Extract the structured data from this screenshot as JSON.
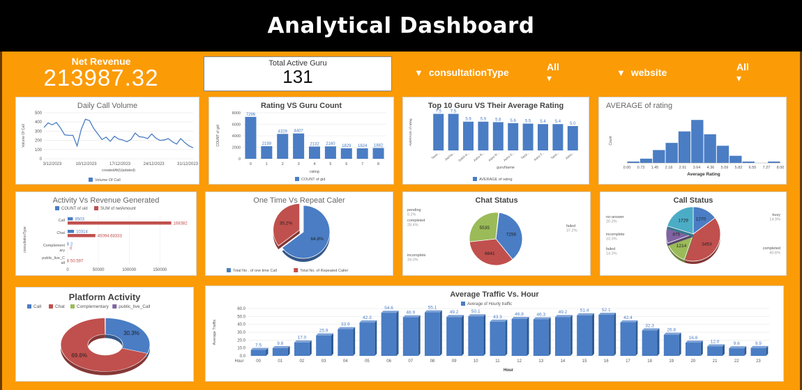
{
  "header": {
    "title": "Analytical Dashboard"
  },
  "kpi": {
    "net_revenue_label": "Net Revenue",
    "net_revenue_value": "213987.32",
    "active_guru_label": "Total Active Guru",
    "active_guru_value": "131"
  },
  "filters": [
    {
      "label": "consultationType",
      "value": "All"
    },
    {
      "label": "website",
      "value": "All"
    }
  ],
  "chart_data": [
    {
      "id": "daily-call-volume",
      "type": "line",
      "title": "Daily Call Volume",
      "xlabel": "createdAt(Updated)",
      "ylabel": "Volume Of Call",
      "ylim": [
        0,
        500
      ],
      "yticks": [
        "0",
        "100",
        "200",
        "300",
        "400",
        "500"
      ],
      "xticks": [
        "3/12/2023",
        "10/12/2023",
        "17/12/2023",
        "24/12/2023",
        "31/12/2023"
      ],
      "values": [
        340,
        390,
        370,
        395,
        335,
        260,
        255,
        255,
        140,
        320,
        430,
        415,
        330,
        270,
        210,
        235,
        190,
        245,
        215,
        205,
        185,
        210,
        280,
        240,
        235,
        220,
        270,
        225,
        200,
        205,
        220,
        185,
        160,
        220,
        175,
        140,
        120
      ],
      "legend": [
        {
          "name": "Volume Of Call",
          "color": "#4a7dc4"
        }
      ]
    },
    {
      "id": "rating-vs-guru-count",
      "type": "bar",
      "title": "Rating VS Guru Count",
      "xlabel": "rating",
      "ylabel": "COUNT of gid",
      "ylim": [
        0,
        8000
      ],
      "yticks": [
        "0",
        "2000",
        "4000",
        "6000",
        "8000"
      ],
      "categories": [
        "0",
        "1",
        "2",
        "3",
        "4",
        "5",
        "6",
        "7",
        "8"
      ],
      "values": [
        7296,
        2199,
        4329,
        4407,
        2132,
        2160,
        1829,
        1824,
        1882
      ],
      "labels": [
        "7296",
        "2199",
        "4329",
        "4407",
        "2132",
        "2160",
        "1829",
        "1824",
        "1882"
      ],
      "legend": [
        {
          "name": "COUNT of gid",
          "color": "#4a7dc4"
        }
      ]
    },
    {
      "id": "top10-guru",
      "type": "bar",
      "title": "Top 10 Guru VS Their Average Rating",
      "xlabel": "guruName",
      "ylabel": "AVERAGE of rating",
      "ylim": [
        0,
        8
      ],
      "categories": [
        "Tarot...",
        "Aacha...",
        "Sukhi K...",
        "Astro R...",
        "Astro R...",
        "Astro S...",
        "Tarot...",
        "Astro T...",
        "Tarot...",
        "Astro..."
      ],
      "values": [
        7.5,
        7.5,
        5.9,
        5.9,
        5.8,
        5.6,
        5.5,
        5.4,
        5.4,
        5.0
      ],
      "labels": [
        "7.5",
        "7.5",
        "5.9",
        "5.9",
        "5.8",
        "5.6",
        "5.5",
        "5.4",
        "5.4",
        "5.0"
      ],
      "legend": [
        {
          "name": "AVERAGE of rating",
          "color": "#4a7dc4"
        }
      ]
    },
    {
      "id": "average-of-rating",
      "type": "bar",
      "title": "AVERAGE of rating",
      "xlabel": "Average Rating",
      "ylabel": "Count",
      "xticks": [
        "0.00",
        "0.73",
        "1.45",
        "2.18",
        "2.91",
        "3.64",
        "4.36",
        "5.09",
        "5.82",
        "6.55",
        "7.27",
        "8.00"
      ],
      "values": [
        1,
        3,
        9,
        14,
        22,
        30,
        20,
        12,
        5,
        1,
        0,
        1
      ],
      "ylim": [
        0,
        34
      ]
    },
    {
      "id": "activity-vs-revenue",
      "type": "bar",
      "title": "Activity Vs Revenue Generated",
      "ylabel": "consultationType",
      "categories": [
        "Call",
        "Chat",
        "Complement ary",
        "public_live_C all"
      ],
      "series": [
        {
          "name": "COUNT of uid",
          "color": "#4a7dc4",
          "values": [
            8503,
            10314,
            2,
            0
          ],
          "labels": [
            "8503",
            "10314",
            "2",
            ""
          ]
        },
        {
          "name": "SUM of netAmount",
          "color": "#c0504d",
          "values": [
            168382,
            45094.68333,
            0,
            50.597
          ],
          "labels": [
            "168382",
            "45094.68333",
            "0",
            "50.597"
          ]
        }
      ],
      "xticks": [
        "0",
        "50000",
        "100000",
        "150000"
      ],
      "xlim": [
        0,
        170000
      ]
    },
    {
      "id": "one-time-vs-repeat",
      "type": "pie",
      "title": "One Time Vs Repeat Caler",
      "slices": [
        {
          "name": "Total No . of one time Call",
          "value": 64.8,
          "label": "64.8%",
          "color": "#4a7dc4"
        },
        {
          "name": "Total No. of Repeated Caller",
          "value": 35.2,
          "label": "35.2%",
          "color": "#c0504d"
        }
      ]
    },
    {
      "id": "chat-status",
      "type": "pie",
      "title": "Chat Status",
      "slices": [
        {
          "name": "failed",
          "value": 7256,
          "label": "7256",
          "pct": "37.2%",
          "color": "#4a7dc4"
        },
        {
          "name": "incomplete",
          "value": 6641,
          "label": "6641",
          "pct": "34.0%",
          "color": "#c0504d"
        },
        {
          "name": "completed",
          "value": 5535,
          "label": "5535",
          "pct": "28.4%",
          "color": "#9bbb59"
        },
        {
          "name": "pending",
          "value": 60,
          "label": "",
          "pct": "0.2%",
          "color": "#8064a2"
        }
      ]
    },
    {
      "id": "call-status",
      "type": "pie",
      "title": "Call Status",
      "slices": [
        {
          "name": "busy",
          "value": 1270,
          "label": "1270",
          "pct": "14.9%",
          "color": "#4a7dc4"
        },
        {
          "name": "completed",
          "value": 3453,
          "label": "3453",
          "pct": "40.6%",
          "color": "#c0504d"
        },
        {
          "name": "failed",
          "value": 1214,
          "label": "1214",
          "pct": "14.3%",
          "color": "#9bbb59"
        },
        {
          "name": "incomplete",
          "value": 875,
          "label": "875",
          "pct": "10.3%",
          "color": "#8064a2"
        },
        {
          "name": "no-answer",
          "value": 1729,
          "label": "1729",
          "pct": "20.3%",
          "color": "#4bacc6"
        }
      ]
    },
    {
      "id": "platform-activity",
      "type": "pie",
      "title": "Platform Activity",
      "slices": [
        {
          "name": "Call",
          "value": 30.3,
          "label": "30.3%",
          "color": "#4a7dc4"
        },
        {
          "name": "Chat",
          "value": 69.6,
          "label": "69.6%",
          "color": "#c0504d"
        },
        {
          "name": "Complementary",
          "value": 0.05,
          "label": "",
          "color": "#9bbb59"
        },
        {
          "name": "public_live_Call",
          "value": 0.05,
          "label": "",
          "color": "#8064a2"
        }
      ]
    },
    {
      "id": "average-traffic",
      "type": "bar",
      "title": "Average Traffic Vs. Hour",
      "xlabel": "Hour",
      "ylabel": "Average Traffic",
      "xfirst": "Hour",
      "ylim": [
        0,
        60
      ],
      "yticks": [
        "0.0",
        "10.0",
        "20.0",
        "30.0",
        "40.0",
        "50.0",
        "60.0"
      ],
      "categories": [
        "00",
        "01",
        "02",
        "03",
        "04",
        "05",
        "06",
        "07",
        "08",
        "09",
        "10",
        "11",
        "12",
        "13",
        "14",
        "15",
        "16",
        "17",
        "18",
        "19",
        "20",
        "21",
        "22",
        "23"
      ],
      "values": [
        7.5,
        9.8,
        17.0,
        25.9,
        33.9,
        42.3,
        54.6,
        48.9,
        55.1,
        49.2,
        50.1,
        43.3,
        46.8,
        46.3,
        49.2,
        51.4,
        52.1,
        42.4,
        32.3,
        26.8,
        16.8,
        12.0,
        9.6,
        9.9
      ],
      "labels": [
        "7.5",
        "9.8",
        "17.0",
        "25.9",
        "33.9",
        "42.3",
        "54.6",
        "48.9",
        "55.1",
        "49.2",
        "50.1",
        "43.3",
        "46.8",
        "46.3",
        "49.2",
        "51.4",
        "52.1",
        "42.4",
        "32.3",
        "26.8",
        "16.8",
        "12.0",
        "9.6",
        "9.9"
      ],
      "legend": [
        {
          "name": "Average of Hourly traffic",
          "color": "#4a7dc4"
        }
      ]
    }
  ]
}
